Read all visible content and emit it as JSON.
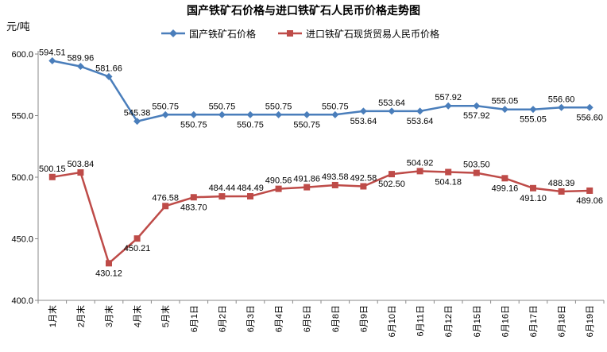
{
  "chart_data": {
    "type": "line",
    "title": "国产铁矿石价格与进口铁矿石人民币价格走势图",
    "ylabel": "元/吨",
    "xlabel": "",
    "ylim": [
      400,
      600
    ],
    "yticks": [
      "400.0",
      "450.0",
      "500.0",
      "550.0",
      "600.0"
    ],
    "grid": false,
    "legend_position": "top",
    "categories": [
      "1月末",
      "2月末",
      "3月末",
      "4月末",
      "5月末",
      "6月1日",
      "6月2日",
      "6月3日",
      "6月4日",
      "6月5日",
      "6月8日",
      "6月9日",
      "6月10日",
      "6月11日",
      "6月12日",
      "6月15日",
      "6月16日",
      "6月17日",
      "6月18日",
      "6月19日"
    ],
    "series": [
      {
        "name": "国产铁矿石价格",
        "color": "#4a7ebb",
        "marker": "diamond",
        "values": [
          594.51,
          589.96,
          581.66,
          545.38,
          550.75,
          550.75,
          550.75,
          550.75,
          550.75,
          550.75,
          550.75,
          553.64,
          553.64,
          553.64,
          557.92,
          557.92,
          555.05,
          555.05,
          556.6,
          556.6
        ],
        "labels": [
          "594.51",
          "589.96",
          "581.66",
          "545.38",
          "550.75",
          "550.75",
          "550.75",
          "550.75",
          "550.75",
          "550.75",
          "550.75",
          "553.64",
          "553.64",
          "553.64",
          "557.92",
          "557.92",
          "555.05",
          "555.05",
          "556.60",
          "556.60"
        ]
      },
      {
        "name": "进口铁矿石现货贸易人民币价格",
        "color": "#be4b48",
        "marker": "square",
        "values": [
          500.15,
          503.84,
          430.12,
          450.21,
          476.58,
          483.7,
          484.44,
          484.49,
          490.56,
          491.86,
          493.58,
          492.58,
          502.5,
          504.92,
          504.18,
          503.5,
          499.16,
          491.1,
          488.39,
          489.06
        ],
        "labels": [
          "500.15",
          "503.84",
          "430.12",
          "450.21",
          "476.58",
          "483.70",
          "484.44",
          "484.49",
          "490.56",
          "491.86",
          "493.58",
          "492.58",
          "502.50",
          "504.92",
          "504.18",
          "503.50",
          "499.16",
          "491.10",
          "488.39",
          "489.06"
        ]
      }
    ]
  }
}
